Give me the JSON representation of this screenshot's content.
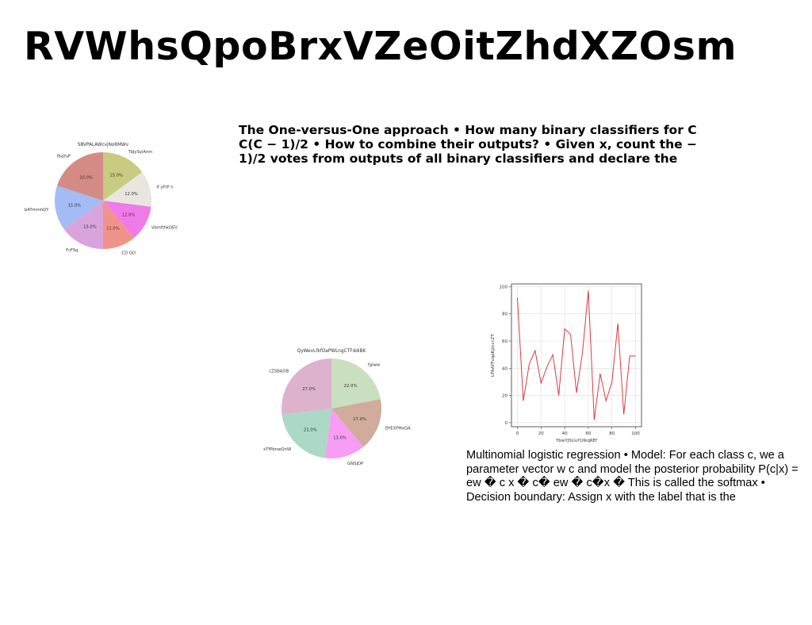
{
  "page": {
    "title": "RVWhsQpoBrxVZeOitZhdXZOsm",
    "para1": "The One-versus-One approach • How many binary classifiers for C C(C − 1)/2 • How to combine their outputs? • Given x, count the − 1)/2 votes from outputs of all binary classifiers and declare the",
    "para2": "Multinomial logistic regression • Model: For each class c, we a parameter vector w c and model the posterior probability P(c|x) = ew � c x � c� ew � c�x � This is called the softmax • Decision boundary: Assign x with the label that is the"
  },
  "chart_data": [
    {
      "type": "pie",
      "title": "SBVPALAWcvjNoRMWv",
      "labels": [
        "TbJySyiAnm",
        "If yFtP h",
        "VbmfthkOEV",
        "CD QO",
        "FcFSq",
        "bATmmhQY",
        "fbqYuP"
      ],
      "values": [
        15.0,
        12.0,
        12.0,
        11.0,
        15.0,
        15.0,
        20.0
      ],
      "colors": [
        "#c8cb80",
        "#e8e6df",
        "#ef7be9",
        "#f2938a",
        "#d9a4dc",
        "#a3bcf5",
        "#d48b85"
      ]
    },
    {
      "type": "pie",
      "title": "QyWevLfkfOaPWLngCTFddiBK",
      "labels": [
        "fgiww",
        "fJYEXFMxQA",
        "GNSjDP",
        "xTfPbnwQnW",
        "cZSBADB"
      ],
      "values": [
        22.0,
        17.0,
        13.0,
        21.0,
        27.0
      ],
      "colors": [
        "#c9e0c0",
        "#d1ab9b",
        "#f79df4",
        "#acd9c5",
        "#ddb2cd"
      ]
    },
    {
      "type": "line",
      "xlabel": "YbwYJSUuYUlkqREf",
      "ylabel": "LFAAYFvqpKjzcccZT",
      "x": [
        0,
        5,
        10,
        15,
        20,
        25,
        30,
        35,
        40,
        45,
        50,
        55,
        60,
        65,
        70,
        75,
        80,
        85,
        90,
        95,
        100
      ],
      "y": [
        92,
        16,
        43,
        53,
        29,
        41,
        50,
        20,
        69,
        65,
        22,
        51,
        97,
        2,
        36,
        16,
        30,
        73,
        6,
        49,
        49
      ],
      "xlim": [
        -5,
        105
      ],
      "ylim": [
        -3,
        102
      ],
      "xticks": [
        0,
        20,
        40,
        60,
        80,
        100
      ],
      "yticks": [
        0,
        20,
        40,
        60,
        80,
        100
      ],
      "grid": true,
      "color": "#e0393e"
    }
  ]
}
